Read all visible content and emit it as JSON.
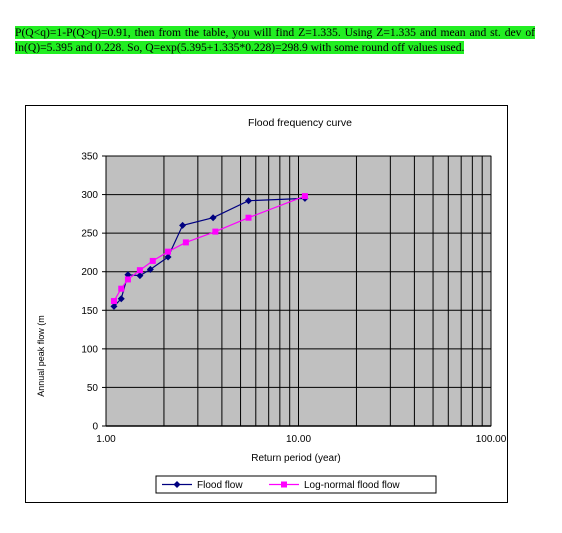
{
  "paragraph": {
    "text": "P(Q<q)=1-P(Q>q)=0.91, then from the table, you will find Z=1.335.  Using Z=1.335 and mean and st. dev of ln(Q)=5.395 and 0.228.  So, Q=exp(5.395+1.335*0.228)=298.9 with some round off values used."
  },
  "chart_data": {
    "type": "line",
    "title": "Flood frequency curve",
    "xlabel": "Return period (year)",
    "ylabel": "Annual peak flow (m",
    "xscale": "log",
    "xlim": [
      1,
      100
    ],
    "ylim": [
      0,
      350
    ],
    "yticks": [
      0,
      50,
      100,
      150,
      200,
      250,
      300,
      350
    ],
    "xtick_labels": [
      "1.00",
      "10.00",
      "100.00"
    ],
    "grid": true,
    "plot_background": "#c0c0c0",
    "legend_position": "bottom",
    "series": [
      {
        "name": "Flood flow",
        "color": "#000080",
        "marker": "diamond",
        "x": [
          1.1,
          1.2,
          1.3,
          1.5,
          1.7,
          2.1,
          2.5,
          3.6,
          5.5,
          10.8
        ],
        "y": [
          155,
          165,
          196,
          195,
          203,
          219,
          260,
          270,
          292,
          295
        ]
      },
      {
        "name": "Log-normal flood flow",
        "color": "#ff00ff",
        "marker": "square",
        "x": [
          1.1,
          1.2,
          1.3,
          1.5,
          1.75,
          2.1,
          2.6,
          3.7,
          5.5,
          10.8
        ],
        "y": [
          162,
          178,
          190,
          202,
          214,
          226,
          238,
          252,
          270,
          298
        ]
      }
    ]
  }
}
